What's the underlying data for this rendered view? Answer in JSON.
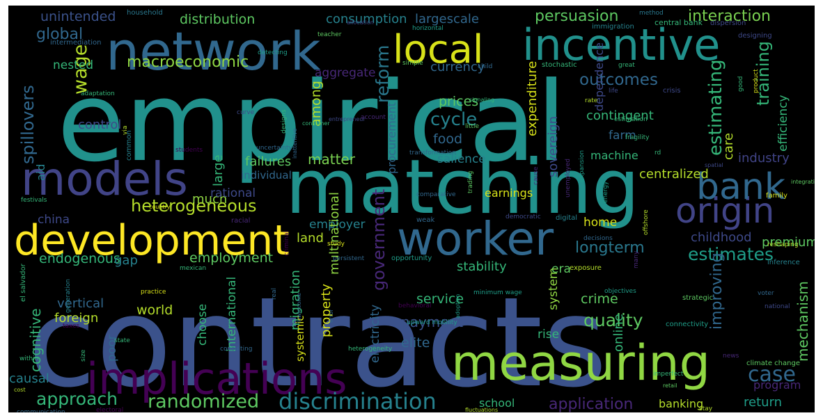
{
  "canvas": {
    "background": "#000000"
  },
  "palette": {
    "purple": "#440154",
    "indigo": "#3b528b",
    "blue": "#31688e",
    "teal": "#21918c",
    "green": "#35b779",
    "lime": "#90d743",
    "yellow": "#fde725",
    "darkblue": "#414487",
    "seafoam": "#1f9e89",
    "mint": "#5ec962",
    "cyan": "#26828e"
  },
  "words": [
    {
      "text": "contracts",
      "color": "#3b528b"
    },
    {
      "text": "empirical",
      "color": "#21918c"
    },
    {
      "text": "matching",
      "color": "#21918c"
    },
    {
      "text": "network",
      "color": "#31688e"
    },
    {
      "text": "implications",
      "color": "#440154"
    },
    {
      "text": "measuring",
      "color": "#90d743"
    },
    {
      "text": "development",
      "color": "#fde725"
    },
    {
      "text": "models",
      "color": "#414487"
    },
    {
      "text": "worker",
      "color": "#31688e"
    },
    {
      "text": "origin",
      "color": "#414487"
    },
    {
      "text": "incentive",
      "color": "#21918c"
    },
    {
      "text": "local",
      "color": "#d8e219"
    },
    {
      "text": "bank",
      "color": "#31688e"
    },
    {
      "text": "discrimination",
      "color": "#26828e"
    },
    {
      "text": "randomized",
      "color": "#5ec962"
    },
    {
      "text": "approach",
      "color": "#35b779"
    },
    {
      "text": "heterogeneous",
      "color": "#b5de2b"
    },
    {
      "text": "persuasion",
      "color": "#5ec962"
    },
    {
      "text": "interaction",
      "color": "#7ad151"
    },
    {
      "text": "spillovers",
      "color": "#31688e"
    },
    {
      "text": "case",
      "color": "#31688e"
    },
    {
      "text": "cycle",
      "color": "#26828e"
    },
    {
      "text": "outcomes",
      "color": "#31688e"
    },
    {
      "text": "wage",
      "color": "#b5de2b"
    },
    {
      "text": "global",
      "color": "#31688e"
    },
    {
      "text": "macroeconomic",
      "color": "#90d743"
    },
    {
      "text": "distribution",
      "color": "#5ec962"
    },
    {
      "text": "consumption",
      "color": "#26828e"
    },
    {
      "text": "largescale",
      "color": "#31688e"
    },
    {
      "text": "unintended",
      "color": "#3b528b"
    },
    {
      "text": "reform",
      "color": "#2a788e"
    },
    {
      "text": "estimating",
      "color": "#35b779"
    },
    {
      "text": "training",
      "color": "#35b779"
    },
    {
      "text": "application",
      "color": "#482878"
    },
    {
      "text": "estimates",
      "color": "#1f9e89"
    },
    {
      "text": "longterm",
      "color": "#2a788e"
    },
    {
      "text": "quality",
      "color": "#5ec962"
    },
    {
      "text": "return",
      "color": "#1f9e89"
    },
    {
      "text": "program",
      "color": "#482878"
    },
    {
      "text": "school",
      "color": "#35b779"
    },
    {
      "text": "banking",
      "color": "#b5de2b"
    },
    {
      "text": "much",
      "color": "#90d743"
    },
    {
      "text": "matter",
      "color": "#7ad151"
    },
    {
      "text": "salience",
      "color": "#26828e"
    },
    {
      "text": "employer",
      "color": "#26828e"
    },
    {
      "text": "employment",
      "color": "#5ec962"
    },
    {
      "text": "endogenous",
      "color": "#35b779"
    },
    {
      "text": "cognitive",
      "color": "#35b779"
    },
    {
      "text": "government",
      "color": "#482878"
    },
    {
      "text": "stability",
      "color": "#35b779"
    },
    {
      "text": "mechanism",
      "color": "#5ec962"
    },
    {
      "text": "improving",
      "color": "#31688e"
    },
    {
      "text": "industry",
      "color": "#414487"
    },
    {
      "text": "childhood",
      "color": "#3e4989"
    },
    {
      "text": "premium",
      "color": "#5ec962"
    },
    {
      "text": "crime",
      "color": "#5ec962"
    },
    {
      "text": "service",
      "color": "#35b779"
    },
    {
      "text": "payment",
      "color": "#3b528b"
    },
    {
      "text": "elite",
      "color": "#31688e"
    },
    {
      "text": "causal",
      "color": "#26828e"
    },
    {
      "text": "vertical",
      "color": "#31688e"
    },
    {
      "text": "foreign",
      "color": "#b5de2b"
    },
    {
      "text": "world",
      "color": "#b5de2b"
    },
    {
      "text": "land",
      "color": "#b5de2b"
    },
    {
      "text": "gap",
      "color": "#26828e"
    },
    {
      "text": "control",
      "color": "#3e4989"
    },
    {
      "text": "food",
      "color": "#31688e"
    },
    {
      "text": "prices",
      "color": "#5ec962"
    },
    {
      "text": "among",
      "color": "#b5de2b"
    },
    {
      "text": "aggregate",
      "color": "#482878"
    },
    {
      "text": "currency",
      "color": "#31688e"
    },
    {
      "text": "nested",
      "color": "#35b779"
    },
    {
      "text": "china",
      "color": "#3e4989"
    },
    {
      "text": "rational",
      "color": "#3e4989"
    },
    {
      "text": "individual",
      "color": "#31688e"
    },
    {
      "text": "failures",
      "color": "#5ec962"
    },
    {
      "text": "large",
      "color": "#35b779"
    },
    {
      "text": "choose",
      "color": "#35b779"
    },
    {
      "text": "international",
      "color": "#35b779"
    },
    {
      "text": "migration",
      "color": "#35b779"
    },
    {
      "text": "systemic",
      "color": "#d8e219"
    },
    {
      "text": "electricity",
      "color": "#31688e"
    },
    {
      "text": "property",
      "color": "#d8e219"
    },
    {
      "text": "multinational",
      "color": "#90d743"
    },
    {
      "text": "poor",
      "color": "#31688e"
    },
    {
      "text": "procurement",
      "color": "#31688e"
    },
    {
      "text": "expenditure",
      "color": "#d8e219"
    },
    {
      "text": "sovereign",
      "color": "#3e4989"
    },
    {
      "text": "contingent",
      "color": "#35b779"
    },
    {
      "text": "farm",
      "color": "#31688e"
    },
    {
      "text": "care",
      "color": "#b5de2b"
    },
    {
      "text": "efficiency",
      "color": "#35b779"
    },
    {
      "text": "centralized",
      "color": "#b5de2b"
    },
    {
      "text": "machine",
      "color": "#35b779"
    },
    {
      "text": "earnings",
      "color": "#d8e219"
    },
    {
      "text": "home",
      "color": "#d8e219"
    },
    {
      "text": "era",
      "color": "#5ec962"
    },
    {
      "text": "system",
      "color": "#90d743"
    },
    {
      "text": "online",
      "color": "#35b779"
    },
    {
      "text": "rise",
      "color": "#35b779"
    },
    {
      "text": "aid",
      "color": "#26828e"
    },
    {
      "text": "central bank",
      "color": "#35b779"
    },
    {
      "text": "dispersion",
      "color": "#3e4989"
    },
    {
      "text": "household",
      "color": "#2a788e"
    },
    {
      "text": "method",
      "color": "#2a788e"
    },
    {
      "text": "immigration",
      "color": "#26828e"
    },
    {
      "text": "designing",
      "color": "#3e4989"
    },
    {
      "text": "intermediation",
      "color": "#31688e"
    },
    {
      "text": "teacher",
      "color": "#5ec962"
    },
    {
      "text": "allocation",
      "color": "#3e4989"
    },
    {
      "text": "horizontal",
      "color": "#1f9e89"
    },
    {
      "text": "detecting",
      "color": "#1f9e89"
    },
    {
      "text": "simple",
      "color": "#5ec962"
    },
    {
      "text": "child",
      "color": "#31688e"
    },
    {
      "text": "great",
      "color": "#35b779"
    },
    {
      "text": "stochastic",
      "color": "#35b779"
    },
    {
      "text": "dependence",
      "color": "#3e4989"
    },
    {
      "text": "life",
      "color": "#3e4989"
    },
    {
      "text": "crisis",
      "color": "#3e4989"
    },
    {
      "text": "rate",
      "color": "#b5de2b"
    },
    {
      "text": "good",
      "color": "#35b779"
    },
    {
      "text": "product",
      "color": "#d8e219"
    },
    {
      "text": "signaling",
      "color": "#35b779"
    },
    {
      "text": "estimation",
      "color": "#35b779"
    },
    {
      "text": "fragility",
      "color": "#35b779"
    },
    {
      "text": "adaptation",
      "color": "#35b779"
    },
    {
      "text": "via",
      "color": "#b5de2b"
    },
    {
      "text": "curve",
      "color": "#3e4989"
    },
    {
      "text": "entrepreneur",
      "color": "#3e4989"
    },
    {
      "text": "account",
      "color": "#482878"
    },
    {
      "text": "consumer",
      "color": "#35b779"
    },
    {
      "text": "little",
      "color": "#5ec962"
    },
    {
      "text": "designs",
      "color": "#35b779"
    },
    {
      "text": "common",
      "color": "#26828e"
    },
    {
      "text": "transformation",
      "color": "#31688e"
    },
    {
      "text": "uncertainty",
      "color": "#31688e"
    },
    {
      "text": "inattentive",
      "color": "#31688e"
    },
    {
      "text": "students",
      "color": "#440154"
    },
    {
      "text": "rd",
      "color": "#35b779"
    },
    {
      "text": "spatial",
      "color": "#3e4989"
    },
    {
      "text": "expansion",
      "color": "#1f9e89"
    },
    {
      "text": "cause",
      "color": "#482878"
    },
    {
      "text": "integration",
      "color": "#5ec962"
    },
    {
      "text": "festivals",
      "color": "#35b779"
    },
    {
      "text": "family",
      "color": "#d8e219"
    },
    {
      "text": "unemployed",
      "color": "#482878"
    },
    {
      "text": "energy",
      "color": "#1f9e89"
    },
    {
      "text": "comparative",
      "color": "#31688e"
    },
    {
      "text": "trading",
      "color": "#5ec962"
    },
    {
      "text": "country",
      "color": "#d8e219"
    },
    {
      "text": "racial",
      "color": "#482878"
    },
    {
      "text": "weak",
      "color": "#31688e"
    },
    {
      "text": "democratic",
      "color": "#3e4989"
    },
    {
      "text": "digital",
      "color": "#26828e"
    },
    {
      "text": "decisions",
      "color": "#31688e"
    },
    {
      "text": "offshore",
      "color": "#b5de2b"
    },
    {
      "text": "reshaping",
      "color": "#b5de2b"
    },
    {
      "text": "study",
      "color": "#d8e219"
    },
    {
      "text": "criminal",
      "color": "#440154"
    },
    {
      "text": "persistent",
      "color": "#31688e"
    },
    {
      "text": "opportunity",
      "color": "#1f9e89"
    },
    {
      "text": "exposure",
      "color": "#b5de2b"
    },
    {
      "text": "many",
      "color": "#482878"
    },
    {
      "text": "inference",
      "color": "#26828e"
    },
    {
      "text": "mexican",
      "color": "#35b779"
    },
    {
      "text": "el salvador",
      "color": "#35b779"
    },
    {
      "text": "practice",
      "color": "#d8e219"
    },
    {
      "text": "generation",
      "color": "#26828e"
    },
    {
      "text": "real",
      "color": "#31688e"
    },
    {
      "text": "lowincome",
      "color": "#31688e"
    },
    {
      "text": "error",
      "color": "#31688e"
    },
    {
      "text": "behavioral",
      "color": "#440154"
    },
    {
      "text": "adoption",
      "color": "#1f9e89"
    },
    {
      "text": "upward mobility",
      "color": "#1f9e89"
    },
    {
      "text": "minimum wage",
      "color": "#1f9e89"
    },
    {
      "text": "objectives",
      "color": "#1f9e89"
    },
    {
      "text": "strategic",
      "color": "#5ec962"
    },
    {
      "text": "voter",
      "color": "#31688e"
    },
    {
      "text": "national",
      "color": "#3e4989"
    },
    {
      "text": "connectivity",
      "color": "#1f9e89"
    },
    {
      "text": "taxes",
      "color": "#440154"
    },
    {
      "text": "state",
      "color": "#35b779"
    },
    {
      "text": "within",
      "color": "#35b779"
    },
    {
      "text": "size",
      "color": "#35b779"
    },
    {
      "text": "consulting",
      "color": "#31688e"
    },
    {
      "text": "heterogeneity",
      "color": "#35b779"
    },
    {
      "text": "imperfect",
      "color": "#35b779"
    },
    {
      "text": "news",
      "color": "#482878"
    },
    {
      "text": "climate change",
      "color": "#5ec962"
    },
    {
      "text": "retail",
      "color": "#5ec962"
    },
    {
      "text": "cost",
      "color": "#b5de2b"
    },
    {
      "text": "electoral",
      "color": "#440154"
    },
    {
      "text": "fluctuations",
      "color": "#b5de2b"
    },
    {
      "text": "stay",
      "color": "#b5de2b"
    },
    {
      "text": "communication",
      "color": "#31688e"
    },
    {
      "text": "interventions",
      "color": "#31688e"
    },
    {
      "text": "overconfidence",
      "color": "#31688e"
    },
    {
      "text": "exchange",
      "color": "#35b779"
    },
    {
      "text": "infant",
      "color": "#b5de2b"
    }
  ]
}
